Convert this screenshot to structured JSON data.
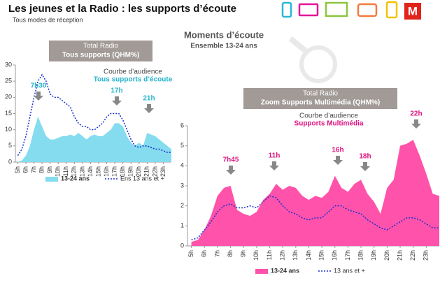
{
  "header": {
    "title": "Les jeunes et la Radio : les supports d’écoute",
    "subtitle": "Tous modes de réception",
    "heading": "Moments d’écoute",
    "subheading": "Ensemble 13-24 ans"
  },
  "chart_data": [
    {
      "type": "area",
      "box_title": [
        "Total Radio",
        "Tous supports (QHM%)"
      ],
      "caption": "Courbe d’audience",
      "subcaption": "Tous supports d’écoute",
      "caption_color": "#29b4cc",
      "annotations": [
        "7h30",
        "17h",
        "21h"
      ],
      "x": [
        5,
        5.5,
        6,
        6.5,
        7,
        7.5,
        8,
        8.5,
        9,
        9.5,
        10,
        10.5,
        11,
        11.5,
        12,
        12.5,
        13,
        13.5,
        14,
        14.5,
        15,
        15.5,
        16,
        16.5,
        17,
        17.5,
        18,
        18.5,
        19,
        19.5,
        20,
        20.5,
        21,
        21.5,
        22,
        22.5,
        23,
        23.5,
        24
      ],
      "xlim": [
        4.7,
        24
      ],
      "xticks": [
        {
          "value": 5,
          "label": "5h"
        },
        {
          "value": 6,
          "label": "6h"
        },
        {
          "value": 7,
          "label": "7h"
        },
        {
          "value": 8,
          "label": "8h"
        },
        {
          "value": 9,
          "label": "9h"
        },
        {
          "value": 10,
          "label": "10h"
        },
        {
          "value": 11,
          "label": "11h"
        },
        {
          "value": 12,
          "label": "12h"
        },
        {
          "value": 13,
          "label": "13h"
        },
        {
          "value": 14,
          "label": "14h"
        },
        {
          "value": 15,
          "label": "15h"
        },
        {
          "value": 16,
          "label": "16h"
        },
        {
          "value": 17,
          "label": "17h"
        },
        {
          "value": 18,
          "label": "18h"
        },
        {
          "value": 19,
          "label": "19h"
        },
        {
          "value": 20,
          "label": "20h"
        },
        {
          "value": 21,
          "label": "21h"
        },
        {
          "value": 22,
          "label": "22h"
        },
        {
          "value": 23,
          "label": "23h"
        }
      ],
      "ylim": [
        0,
        30
      ],
      "yticks": [
        0,
        5,
        10,
        15,
        20,
        25,
        30
      ],
      "series": [
        {
          "name": "13-24 ans",
          "color": "#84dcee",
          "area": true,
          "values": [
            0,
            0.5,
            2,
            5,
            10,
            14,
            11,
            8,
            7,
            7,
            7.5,
            8,
            8,
            8.5,
            8,
            9,
            8,
            7,
            8,
            8.5,
            8,
            8,
            9,
            10,
            12,
            12,
            11,
            8,
            6,
            5,
            6,
            5,
            9,
            8.5,
            8,
            7,
            6,
            5,
            4
          ]
        },
        {
          "name": "Ens 13 ans et +",
          "color": "#1a2fd0",
          "area": false,
          "values": [
            2,
            4,
            8,
            14,
            20,
            25,
            27,
            25,
            21,
            20,
            20,
            19,
            18,
            17,
            14,
            12,
            11,
            11,
            10,
            10,
            11,
            12,
            14,
            15,
            15,
            15,
            13,
            10,
            7,
            5,
            4.5,
            5,
            5,
            4.5,
            4,
            4,
            3.5,
            3,
            3
          ]
        }
      ]
    },
    {
      "type": "area",
      "box_title": [
        "Total Radio",
        "Zoom Supports Multimédia (QHM%)"
      ],
      "caption": "Courbe d’audience",
      "subcaption": "Supports Multimédia",
      "caption_color": "#e0127f",
      "annotations": [
        "7h45",
        "11h",
        "16h",
        "18h",
        "22h"
      ],
      "x": [
        5,
        5.5,
        6,
        6.5,
        7,
        7.5,
        8,
        8.5,
        9,
        9.5,
        10,
        10.5,
        11,
        11.5,
        12,
        12.5,
        13,
        13.5,
        14,
        14.5,
        15,
        15.5,
        16,
        16.5,
        17,
        17.5,
        18,
        18.5,
        19,
        19.5,
        20,
        20.5,
        21,
        21.5,
        22,
        22.5,
        23,
        23.5,
        24
      ],
      "xlim": [
        4.7,
        24
      ],
      "xticks": [
        {
          "value": 5,
          "label": "5h"
        },
        {
          "value": 6,
          "label": "6h"
        },
        {
          "value": 7,
          "label": "7h"
        },
        {
          "value": 8,
          "label": "8h"
        },
        {
          "value": 9,
          "label": "9h"
        },
        {
          "value": 10,
          "label": "10h"
        },
        {
          "value": 11,
          "label": "11h"
        },
        {
          "value": 12,
          "label": "12h"
        },
        {
          "value": 13,
          "label": "13h"
        },
        {
          "value": 14,
          "label": "14h"
        },
        {
          "value": 15,
          "label": "15h"
        },
        {
          "value": 16,
          "label": "16h"
        },
        {
          "value": 17,
          "label": "17h"
        },
        {
          "value": 18,
          "label": "18h"
        },
        {
          "value": 19,
          "label": "19h"
        },
        {
          "value": 20,
          "label": "20h"
        },
        {
          "value": 21,
          "label": "21h"
        },
        {
          "value": 22,
          "label": "22h"
        },
        {
          "value": 23,
          "label": "23h"
        }
      ],
      "ylim": [
        0,
        6
      ],
      "yticks": [
        0,
        1,
        2,
        3,
        4,
        5,
        6
      ],
      "series": [
        {
          "name": "13-24 ans",
          "color": "#ff52aa",
          "area": true,
          "values": [
            0.2,
            0.3,
            0.8,
            1.5,
            2.5,
            2.9,
            3.0,
            1.8,
            1.6,
            1.5,
            1.7,
            2.3,
            2.6,
            3.1,
            2.8,
            3.0,
            2.9,
            2.5,
            2.3,
            2.5,
            2.4,
            2.7,
            3.5,
            2.9,
            2.7,
            3.1,
            3.3,
            2.6,
            2.2,
            1.6,
            2.9,
            3.3,
            5.0,
            5.1,
            5.3,
            4.5,
            3.6,
            2.6,
            2.5
          ]
        },
        {
          "name": "13 ans et +",
          "color": "#1a2fd0",
          "area": false,
          "values": [
            0.3,
            0.4,
            0.8,
            1.2,
            1.7,
            2.0,
            2.1,
            1.9,
            1.9,
            2.0,
            1.9,
            2.2,
            2.5,
            2.4,
            2.0,
            1.7,
            1.6,
            1.4,
            1.3,
            1.4,
            1.4,
            1.7,
            2.0,
            2.0,
            1.8,
            1.7,
            1.6,
            1.3,
            1.1,
            0.9,
            0.8,
            1.0,
            1.2,
            1.4,
            1.4,
            1.3,
            1.1,
            0.9,
            0.9
          ]
        }
      ]
    }
  ]
}
